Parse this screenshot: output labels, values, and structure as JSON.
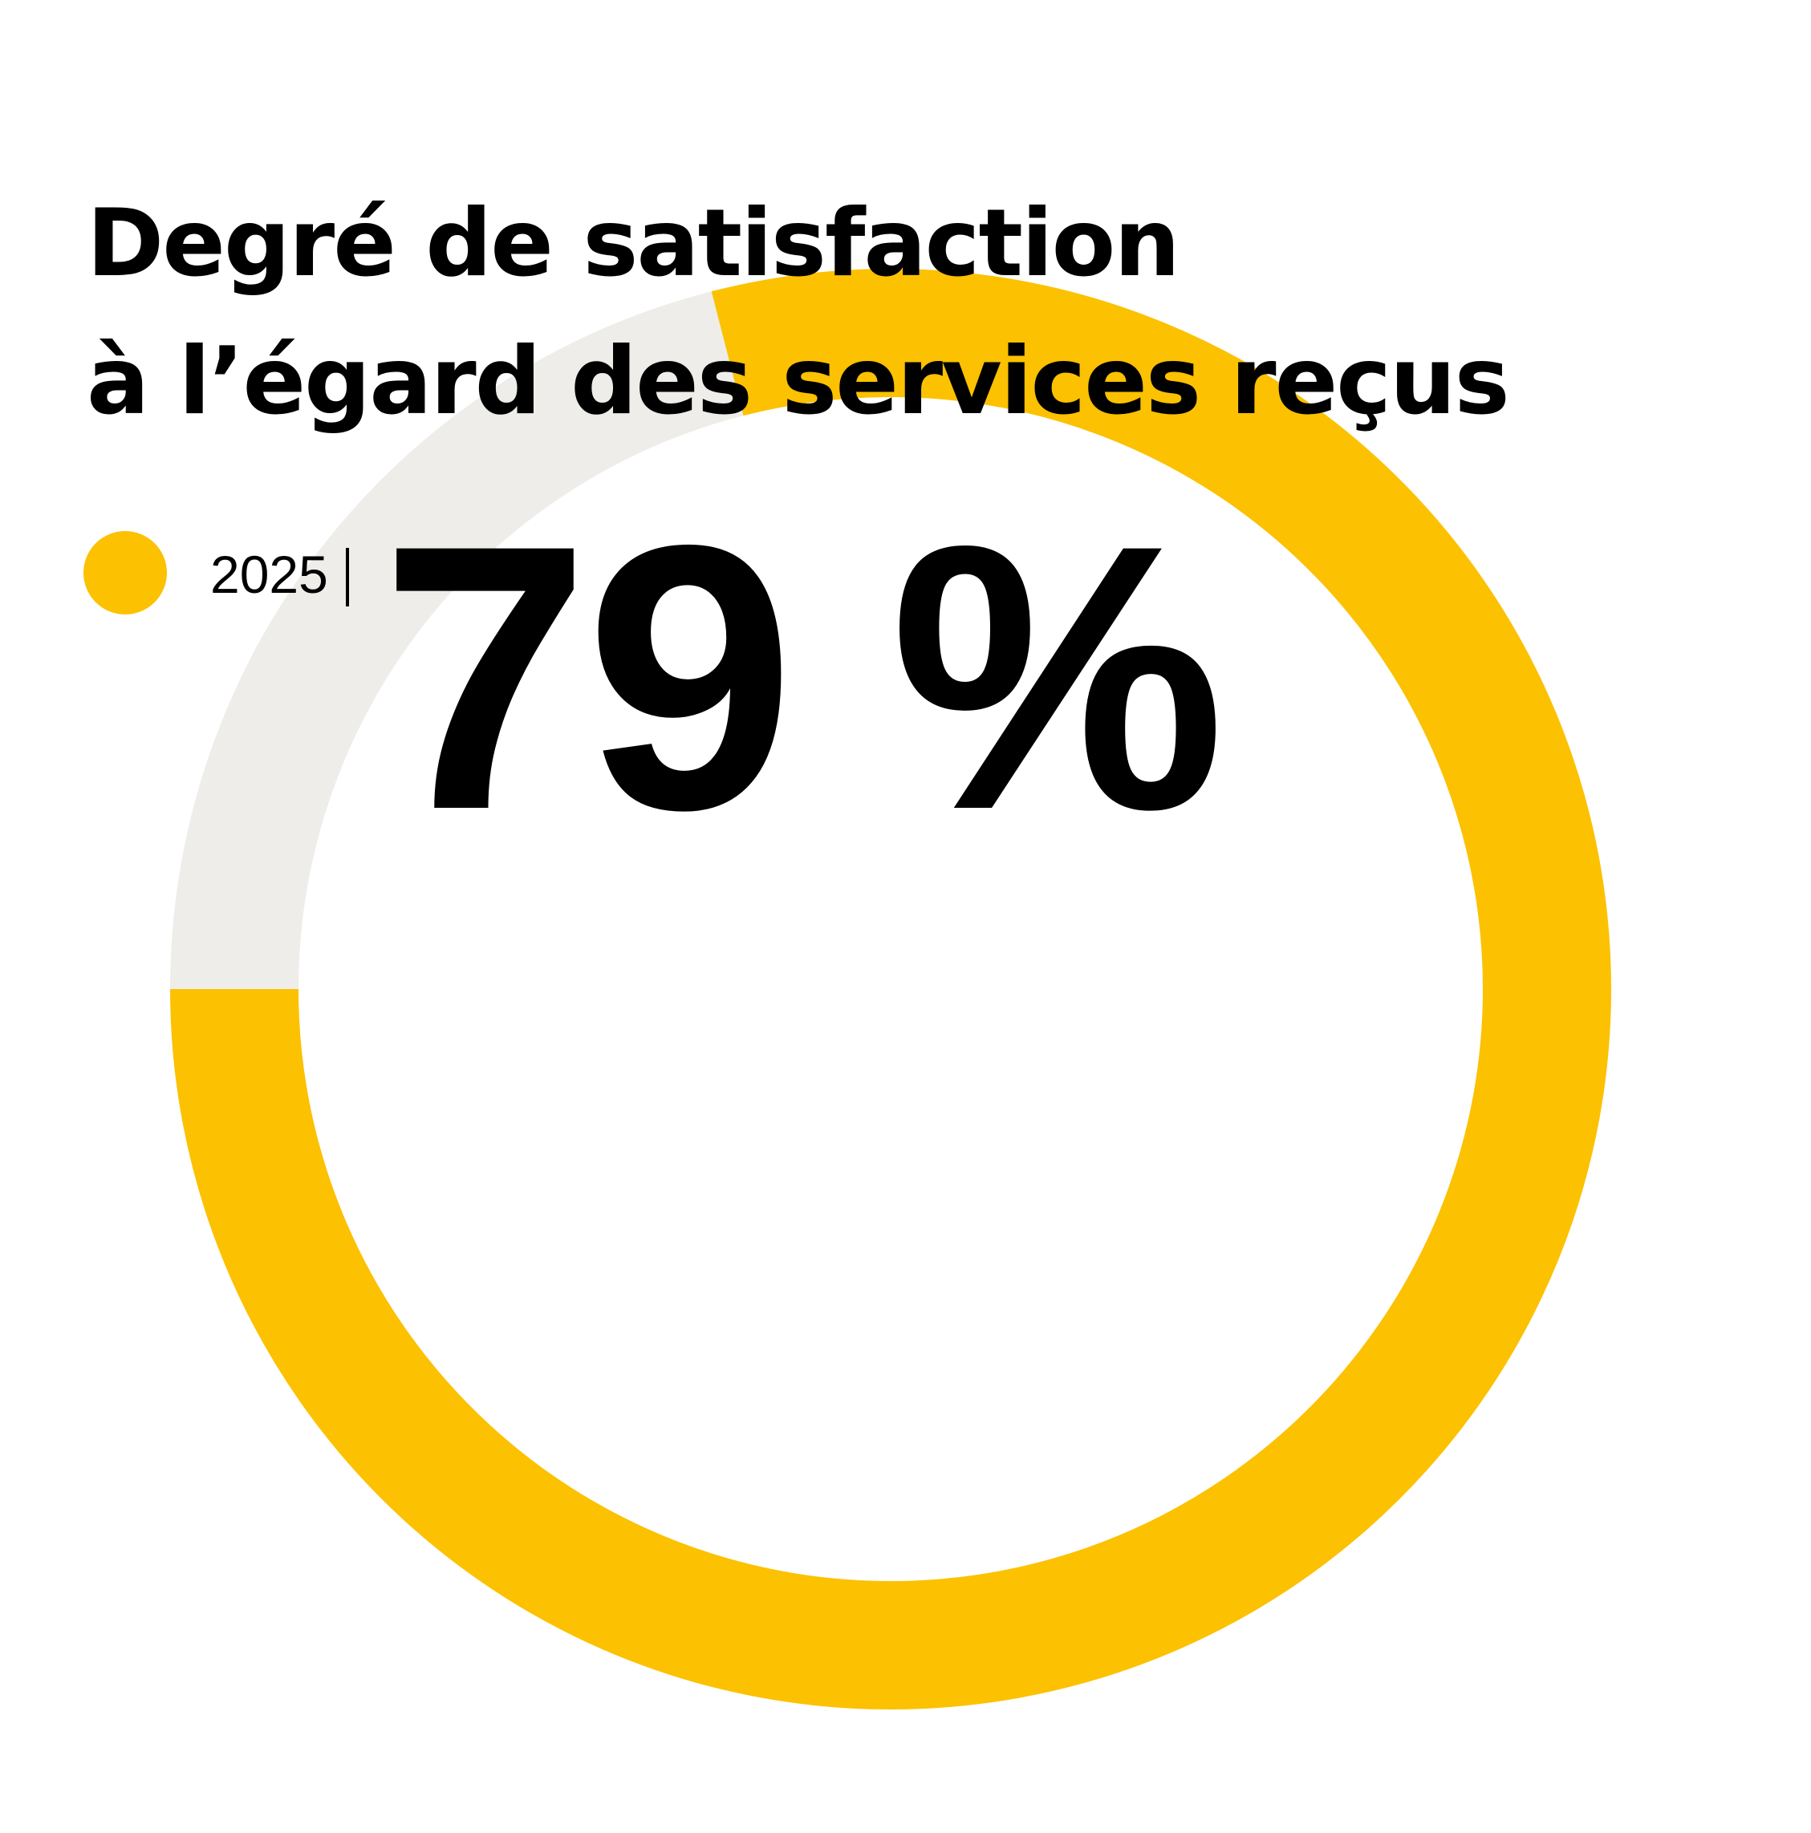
{
  "title_lines": [
    "Degré de satisfaction",
    "à l’égard des services reçus"
  ],
  "legend": {
    "label": "2025",
    "separator": "|",
    "color": "#FCC100"
  },
  "big_value": "79 %",
  "chart_data": {
    "type": "pie",
    "variant": "donut",
    "title": "Degré de satisfaction à l’égard des services reçus",
    "series": [
      {
        "name": "2025",
        "value": 79,
        "color": "#FCC100"
      }
    ],
    "remainder": {
      "value": 21,
      "color": "#EEEDEA"
    },
    "total": 100,
    "unit": "%",
    "start_angle": "left (9 o'clock)",
    "direction": "counter-clockwise"
  }
}
